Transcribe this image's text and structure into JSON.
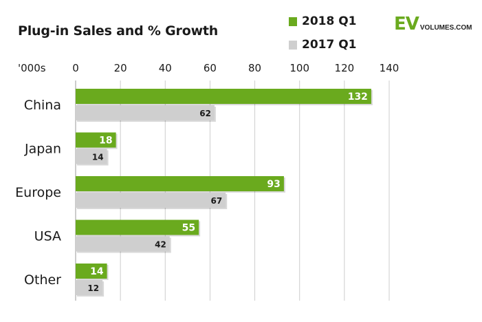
{
  "chart_data": {
    "type": "bar",
    "orientation": "horizontal",
    "title": "Plug-in Sales and % Growth",
    "unit_label": "'000s",
    "categories": [
      "China",
      "Japan",
      "Europe",
      "USA",
      "Other"
    ],
    "series": [
      {
        "name": "2018 Q1",
        "values": [
          132,
          18,
          93,
          55,
          14
        ],
        "color": "#6aaa1e"
      },
      {
        "name": "2017 Q1",
        "values": [
          62,
          14,
          67,
          42,
          12
        ],
        "color": "#cfcfcf"
      }
    ],
    "xlim": [
      0,
      140
    ],
    "ticks": [
      0,
      20,
      40,
      60,
      80,
      100,
      120,
      140
    ],
    "grid": true,
    "legend_position": "top-right"
  },
  "logo": {
    "ev": "EV",
    "rest": "VOLUMES.COM",
    "ev_color": "#6aaa1e"
  }
}
